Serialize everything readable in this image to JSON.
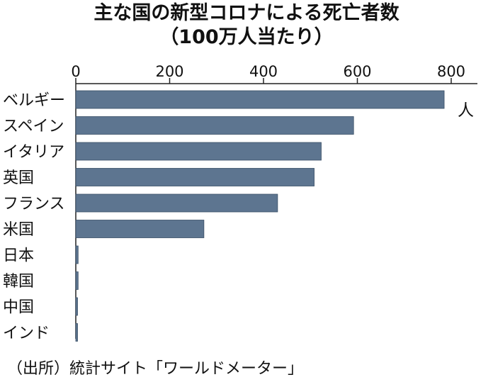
{
  "chart_data": {
    "type": "bar",
    "orientation": "horizontal",
    "title": "主な国の新型コロナによる死亡者数",
    "subtitle": "（100万人当たり）",
    "unit": "人",
    "categories": [
      "ベルギー",
      "スペイン",
      "イタリア",
      "英国",
      "フランス",
      "米国",
      "日本",
      "韓国",
      "中国",
      "インド"
    ],
    "values": [
      785,
      592,
      523,
      508,
      430,
      273,
      5,
      5,
      3,
      2
    ],
    "xlim": [
      0,
      850
    ],
    "xticks": [
      0,
      200,
      400,
      600,
      800
    ],
    "bar_color": "#5d7590",
    "legend": "none",
    "grid": false
  },
  "source": "（出所）統計サイト「ワールドメーター」"
}
